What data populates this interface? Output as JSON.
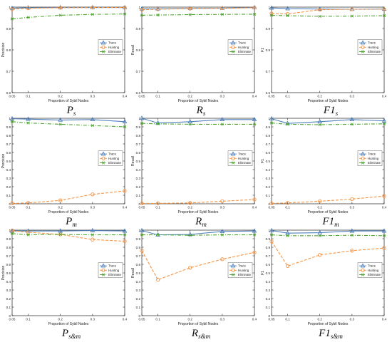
{
  "figure": {
    "legend_labels": [
      "Trace",
      "Hunting",
      "Eliminate"
    ],
    "colors": {
      "Trace": "#4f81bd",
      "Hunting": "#f79646",
      "Eliminate": "#4ea72e"
    }
  },
  "chart_data": [
    {
      "id": "p_s",
      "type": "line",
      "caption": "P",
      "caption_sub": "s",
      "xlabel": "Proportion of Sybil Nodes",
      "ylabel": "Precision",
      "x": [
        0.05,
        0.1,
        0.2,
        0.3,
        0.4
      ],
      "xticks": [
        "0.05",
        "0.1",
        "0.2",
        "0.3",
        "0.4"
      ],
      "xlim": [
        0.05,
        0.4
      ],
      "ylim": [
        0.6,
        1.0
      ],
      "yticks": [
        "0.6",
        "0.7",
        "0.8",
        "0.9",
        "1"
      ],
      "ytick_values": [
        0.6,
        0.7,
        0.8,
        0.9,
        1.0
      ],
      "legend": "center-right",
      "series": [
        {
          "name": "Trace",
          "values": [
            0.995,
            0.997,
            0.998,
            0.998,
            0.998
          ]
        },
        {
          "name": "Hunting",
          "values": [
            0.99,
            0.995,
            0.997,
            0.998,
            0.998
          ]
        },
        {
          "name": "Eliminate",
          "values": [
            0.945,
            0.952,
            0.962,
            0.966,
            0.968
          ]
        }
      ]
    },
    {
      "id": "r_s",
      "type": "line",
      "caption": "R",
      "caption_sub": "s",
      "xlabel": "Proportion of Sybil Nodes",
      "ylabel": "Recall",
      "x": [
        0.05,
        0.1,
        0.2,
        0.3,
        0.4
      ],
      "xticks": [
        "0.05",
        "0.1",
        "0.2",
        "0.3",
        "0.4"
      ],
      "xlim": [
        0.05,
        0.4
      ],
      "ylim": [
        0.6,
        1.0
      ],
      "yticks": [
        "0.6",
        "0.7",
        "0.8",
        "0.9",
        "1"
      ],
      "ytick_values": [
        0.6,
        0.7,
        0.8,
        0.9,
        1.0
      ],
      "legend": "center-right",
      "series": [
        {
          "name": "Trace",
          "values": [
            0.992,
            0.992,
            0.994,
            0.995,
            0.998
          ]
        },
        {
          "name": "Hunting",
          "values": [
            0.988,
            0.99,
            0.993,
            0.995,
            0.997
          ]
        },
        {
          "name": "Eliminate",
          "values": [
            0.962,
            0.963,
            0.965,
            0.966,
            0.967
          ]
        }
      ]
    },
    {
      "id": "f1_s",
      "type": "line",
      "caption": "F1",
      "caption_sub": "s",
      "xlabel": "Proportion of Sybil Nodes",
      "ylabel": "F1",
      "x": [
        0.05,
        0.1,
        0.2,
        0.3,
        0.4
      ],
      "xticks": [
        "0.05",
        "0.1",
        "0.2",
        "0.3",
        "0.4"
      ],
      "xlim": [
        0.05,
        0.4
      ],
      "ylim": [
        0.6,
        1.0
      ],
      "yticks": [
        "0.6",
        "0.7",
        "0.8",
        "0.9",
        "1"
      ],
      "ytick_values": [
        0.6,
        0.7,
        0.8,
        0.9,
        1.0
      ],
      "legend": "center-right",
      "series": [
        {
          "name": "Trace",
          "values": [
            0.996,
            0.993,
            0.991,
            0.99,
            0.991
          ]
        },
        {
          "name": "Hunting",
          "values": [
            0.97,
            0.968,
            0.988,
            0.99,
            0.99
          ]
        },
        {
          "name": "Eliminate",
          "values": [
            0.962,
            0.96,
            0.957,
            0.958,
            0.96
          ]
        }
      ]
    },
    {
      "id": "p_m",
      "type": "line",
      "caption": "P",
      "caption_sub": "m",
      "xlabel": "Proportion of Sybil Nodes",
      "ylabel": "Precision",
      "x": [
        0.05,
        0.1,
        0.2,
        0.3,
        0.4
      ],
      "xticks": [
        "0.05",
        "0.1",
        "0.2",
        "0.3",
        "0.4"
      ],
      "xlim": [
        0.05,
        0.4
      ],
      "ylim": [
        0.0,
        1.0
      ],
      "yticks": [
        "0",
        "0.1",
        "0.2",
        "0.3",
        "0.4",
        "0.5",
        "0.6",
        "0.7",
        "0.8",
        "0.9",
        "1"
      ],
      "ytick_values": [
        0,
        0.1,
        0.2,
        0.3,
        0.4,
        0.5,
        0.6,
        0.7,
        0.8,
        0.9,
        1.0
      ],
      "legend": "center-right",
      "series": [
        {
          "name": "Trace",
          "values": [
            0.995,
            0.99,
            0.98,
            0.985,
            0.96
          ]
        },
        {
          "name": "Hunting",
          "values": [
            0.005,
            0.01,
            0.04,
            0.11,
            0.15
          ]
        },
        {
          "name": "Eliminate",
          "values": [
            0.96,
            0.945,
            0.93,
            0.915,
            0.9
          ]
        }
      ]
    },
    {
      "id": "r_m",
      "type": "line",
      "caption": "R",
      "caption_sub": "m",
      "xlabel": "Proportion of Sybil Nodes",
      "ylabel": "Recall",
      "x": [
        0.05,
        0.1,
        0.2,
        0.3,
        0.4
      ],
      "xticks": [
        "0.05",
        "0.1",
        "0.2",
        "0.3",
        "0.4"
      ],
      "xlim": [
        0.05,
        0.4
      ],
      "ylim": [
        0.0,
        1.0
      ],
      "yticks": [
        "0",
        "0.1",
        "0.2",
        "0.3",
        "0.4",
        "0.5",
        "0.6",
        "0.7",
        "0.8",
        "0.9",
        "1"
      ],
      "ytick_values": [
        0,
        0.1,
        0.2,
        0.3,
        0.4,
        0.5,
        0.6,
        0.7,
        0.8,
        0.9,
        1.0
      ],
      "legend": "center-right",
      "series": [
        {
          "name": "Trace",
          "values": [
            1.0,
            0.945,
            0.96,
            0.985,
            0.985
          ]
        },
        {
          "name": "Hunting",
          "values": [
            0.005,
            0.005,
            0.01,
            0.03,
            0.05
          ]
        },
        {
          "name": "Eliminate",
          "values": [
            0.94,
            0.935,
            0.93,
            0.93,
            0.93
          ]
        }
      ]
    },
    {
      "id": "f1_m",
      "type": "line",
      "caption": "F1",
      "caption_sub": "m",
      "xlabel": "Proportion of Sybil Nodes",
      "ylabel": "F1",
      "x": [
        0.05,
        0.1,
        0.2,
        0.3,
        0.4
      ],
      "xticks": [
        "0.05",
        "0.1",
        "0.2",
        "0.3",
        "0.4"
      ],
      "xlim": [
        0.05,
        0.4
      ],
      "ylim": [
        0.0,
        1.0
      ],
      "yticks": [
        "0",
        "0.1",
        "0.2",
        "0.3",
        "0.4",
        "0.5",
        "0.6",
        "0.7",
        "0.8",
        "0.9",
        "1"
      ],
      "ytick_values": [
        0,
        0.1,
        0.2,
        0.3,
        0.4,
        0.5,
        0.6,
        0.7,
        0.8,
        0.9,
        1.0
      ],
      "legend": "center-right",
      "series": [
        {
          "name": "Trace",
          "values": [
            0.995,
            0.94,
            0.96,
            0.985,
            0.97
          ]
        },
        {
          "name": "Hunting",
          "values": [
            0.005,
            0.01,
            0.03,
            0.055,
            0.09
          ]
        },
        {
          "name": "Eliminate",
          "values": [
            0.945,
            0.93,
            0.925,
            0.93,
            0.935
          ]
        }
      ]
    },
    {
      "id": "p_sm",
      "type": "line",
      "caption": "P",
      "caption_sub": "s&m",
      "xlabel": "Proportion of Sybil Nodes",
      "ylabel": "Precision",
      "x": [
        0.05,
        0.1,
        0.2,
        0.3,
        0.4
      ],
      "xticks": [
        "0.05",
        "0.1",
        "0.2",
        "0.3",
        "0.4"
      ],
      "xlim": [
        0.05,
        0.4
      ],
      "ylim": [
        0.0,
        1.0
      ],
      "yticks": [
        "0",
        "0.1",
        "0.2",
        "0.3",
        "0.4",
        "0.5",
        "0.6",
        "0.7",
        "0.8",
        "0.9",
        "1"
      ],
      "ytick_values": [
        0,
        0.1,
        0.2,
        0.3,
        0.4,
        0.5,
        0.6,
        0.7,
        0.8,
        0.9,
        1.0
      ],
      "legend": "center-right",
      "series": [
        {
          "name": "Trace",
          "values": [
            0.99,
            0.99,
            0.99,
            0.995,
            0.99
          ]
        },
        {
          "name": "Hunting",
          "values": [
            0.995,
            0.975,
            0.95,
            0.89,
            0.87
          ]
        },
        {
          "name": "Eliminate",
          "values": [
            0.96,
            0.945,
            0.95,
            0.945,
            0.945
          ]
        }
      ]
    },
    {
      "id": "r_sm",
      "type": "line",
      "caption": "R",
      "caption_sub": "s&m",
      "xlabel": "Proportion of Sybil Nodes",
      "ylabel": "Recall",
      "x": [
        0.05,
        0.1,
        0.2,
        0.3,
        0.4
      ],
      "xticks": [
        "0.05",
        "0.1",
        "0.2",
        "0.3",
        "0.4"
      ],
      "xlim": [
        0.05,
        0.4
      ],
      "ylim": [
        0.0,
        1.0
      ],
      "yticks": [
        "0",
        "0.1",
        "0.2",
        "0.3",
        "0.4",
        "0.5",
        "0.6",
        "0.7",
        "0.8",
        "0.9",
        "1"
      ],
      "ytick_values": [
        0,
        0.1,
        0.2,
        0.3,
        0.4,
        0.5,
        0.6,
        0.7,
        0.8,
        0.9,
        1.0
      ],
      "legend": "center-right",
      "series": [
        {
          "name": "Trace",
          "values": [
            0.995,
            0.945,
            0.95,
            0.985,
            0.99
          ]
        },
        {
          "name": "Hunting",
          "values": [
            0.76,
            0.42,
            0.56,
            0.66,
            0.74
          ]
        },
        {
          "name": "Eliminate",
          "values": [
            0.945,
            0.945,
            0.94,
            0.945,
            0.945
          ]
        }
      ]
    },
    {
      "id": "f1_sm",
      "type": "line",
      "caption": "F1",
      "caption_sub": "s&m",
      "xlabel": "Proportion of Sybil Nodes",
      "ylabel": "F1",
      "x": [
        0.05,
        0.1,
        0.2,
        0.3,
        0.4
      ],
      "xticks": [
        "0.05",
        "0.1",
        "0.2",
        "0.3",
        "0.4"
      ],
      "xlim": [
        0.05,
        0.4
      ],
      "ylim": [
        0.0,
        1.0
      ],
      "yticks": [
        "0",
        "0.1",
        "0.2",
        "0.3",
        "0.4",
        "0.5",
        "0.6",
        "0.7",
        "0.8",
        "0.9",
        "1"
      ],
      "ytick_values": [
        0,
        0.1,
        0.2,
        0.3,
        0.4,
        0.5,
        0.6,
        0.7,
        0.8,
        0.9,
        1.0
      ],
      "legend": "center-right",
      "series": [
        {
          "name": "Trace",
          "values": [
            0.995,
            0.965,
            0.97,
            0.99,
            0.99
          ]
        },
        {
          "name": "Hunting",
          "values": [
            0.87,
            0.58,
            0.71,
            0.76,
            0.79
          ]
        },
        {
          "name": "Eliminate",
          "values": [
            0.945,
            0.935,
            0.935,
            0.94,
            0.935
          ]
        }
      ]
    }
  ]
}
